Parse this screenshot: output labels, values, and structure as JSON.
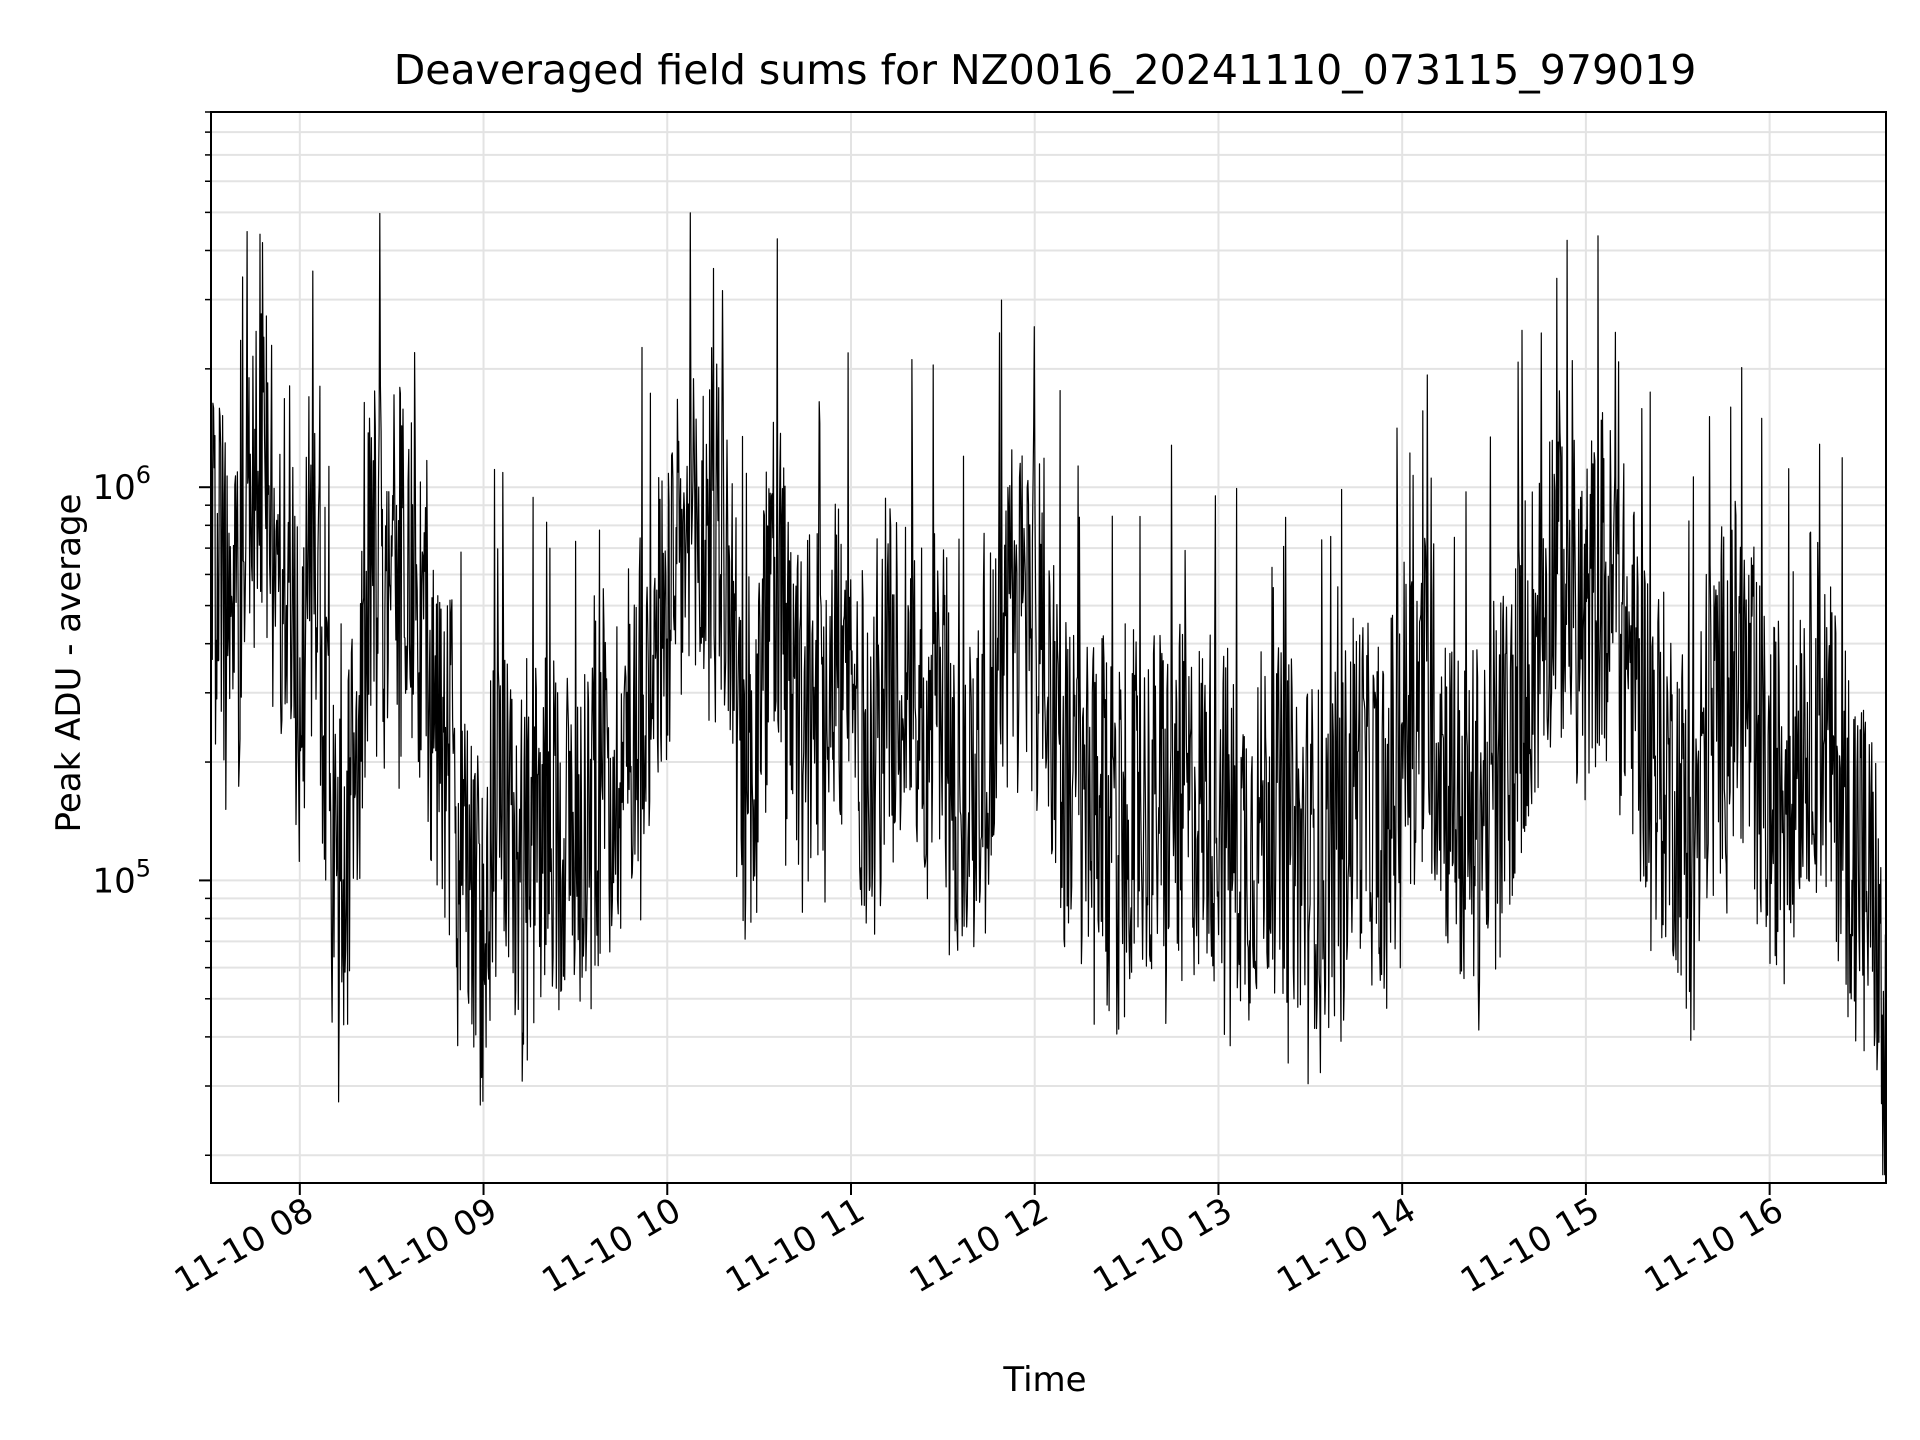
{
  "chart_data": {
    "type": "line",
    "title": "Deaveraged field sums for NZ0016_20241110_073115_979019",
    "xlabel": "Time",
    "ylabel": "Peak ADU - average",
    "yscale": "log",
    "grid": true,
    "legend": "none",
    "xlim": [
      "2024-11-10 07:31",
      "2024-11-10 16:38"
    ],
    "ylim": [
      17000,
      9000000
    ],
    "x_ticks": [
      {
        "value": "2024-11-10 08:00",
        "label": "11-10 08"
      },
      {
        "value": "2024-11-10 09:00",
        "label": "11-10 09"
      },
      {
        "value": "2024-11-10 10:00",
        "label": "11-10 10"
      },
      {
        "value": "2024-11-10 11:00",
        "label": "11-10 11"
      },
      {
        "value": "2024-11-10 12:00",
        "label": "11-10 12"
      },
      {
        "value": "2024-11-10 13:00",
        "label": "11-10 13"
      },
      {
        "value": "2024-11-10 14:00",
        "label": "11-10 14"
      },
      {
        "value": "2024-11-10 15:00",
        "label": "11-10 15"
      },
      {
        "value": "2024-11-10 16:00",
        "label": "11-10 16"
      }
    ],
    "y_ticks": [
      {
        "value": 100000,
        "base": "10",
        "exp": "5"
      },
      {
        "value": 1000000,
        "base": "10",
        "exp": "6"
      }
    ],
    "series": [
      {
        "color": "#000000",
        "x": [
          "2024-11-10 07:31",
          "2024-11-10 07:36",
          "2024-11-10 07:41",
          "2024-11-10 07:46",
          "2024-11-10 07:50",
          "2024-11-10 07:55",
          "2024-11-10 08:00",
          "2024-11-10 08:05",
          "2024-11-10 08:10",
          "2024-11-10 08:15",
          "2024-11-10 08:20",
          "2024-11-10 08:25",
          "2024-11-10 08:30",
          "2024-11-10 08:35",
          "2024-11-10 08:40",
          "2024-11-10 08:45",
          "2024-11-10 08:50",
          "2024-11-10 08:55",
          "2024-11-10 09:00",
          "2024-11-10 09:05",
          "2024-11-10 09:10",
          "2024-11-10 09:15",
          "2024-11-10 09:20",
          "2024-11-10 09:25",
          "2024-11-10 09:30",
          "2024-11-10 09:35",
          "2024-11-10 09:40",
          "2024-11-10 09:45",
          "2024-11-10 09:50",
          "2024-11-10 09:55",
          "2024-11-10 10:00",
          "2024-11-10 10:05",
          "2024-11-10 10:10",
          "2024-11-10 10:15",
          "2024-11-10 10:20",
          "2024-11-10 10:25",
          "2024-11-10 10:30",
          "2024-11-10 10:35",
          "2024-11-10 10:40",
          "2024-11-10 10:45",
          "2024-11-10 10:50",
          "2024-11-10 10:55",
          "2024-11-10 11:00",
          "2024-11-10 11:05",
          "2024-11-10 11:10",
          "2024-11-10 11:15",
          "2024-11-10 11:20",
          "2024-11-10 11:25",
          "2024-11-10 11:30",
          "2024-11-10 11:35",
          "2024-11-10 11:40",
          "2024-11-10 11:45",
          "2024-11-10 11:50",
          "2024-11-10 11:55",
          "2024-11-10 12:00",
          "2024-11-10 12:05",
          "2024-11-10 12:10",
          "2024-11-10 12:15",
          "2024-11-10 12:20",
          "2024-11-10 12:25",
          "2024-11-10 12:30",
          "2024-11-10 12:35",
          "2024-11-10 12:40",
          "2024-11-10 12:45",
          "2024-11-10 12:50",
          "2024-11-10 12:55",
          "2024-11-10 13:00",
          "2024-11-10 13:05",
          "2024-11-10 13:10",
          "2024-11-10 13:15",
          "2024-11-10 13:20",
          "2024-11-10 13:25",
          "2024-11-10 13:30",
          "2024-11-10 13:35",
          "2024-11-10 13:40",
          "2024-11-10 13:45",
          "2024-11-10 13:50",
          "2024-11-10 13:55",
          "2024-11-10 14:00",
          "2024-11-10 14:05",
          "2024-11-10 14:10",
          "2024-11-10 14:15",
          "2024-11-10 14:20",
          "2024-11-10 14:25",
          "2024-11-10 14:30",
          "2024-11-10 14:35",
          "2024-11-10 14:40",
          "2024-11-10 14:45",
          "2024-11-10 14:50",
          "2024-11-10 14:55",
          "2024-11-10 15:00",
          "2024-11-10 15:05",
          "2024-11-10 15:10",
          "2024-11-10 15:15",
          "2024-11-10 15:20",
          "2024-11-10 15:25",
          "2024-11-10 15:30",
          "2024-11-10 15:35",
          "2024-11-10 15:40",
          "2024-11-10 15:45",
          "2024-11-10 15:50",
          "2024-11-10 15:55",
          "2024-11-10 16:00",
          "2024-11-10 16:05",
          "2024-11-10 16:10",
          "2024-11-10 16:15",
          "2024-11-10 16:20",
          "2024-11-10 16:25",
          "2024-11-10 16:30",
          "2024-11-10 16:35",
          "2024-11-10 16:38"
        ],
        "y": [
          600000,
          550000,
          620000,
          1050000,
          950000,
          600000,
          300000,
          700000,
          120000,
          90000,
          400000,
          800000,
          600000,
          700000,
          400000,
          250000,
          180000,
          90000,
          70000,
          300000,
          100000,
          110000,
          150000,
          130000,
          140000,
          160000,
          170000,
          200000,
          300000,
          350000,
          500000,
          650000,
          700000,
          900000,
          600000,
          150000,
          250000,
          700000,
          300000,
          250000,
          320000,
          400000,
          300000,
          200000,
          350000,
          300000,
          400000,
          250000,
          300000,
          150000,
          200000,
          250000,
          450000,
          500000,
          600000,
          350000,
          180000,
          150000,
          140000,
          160000,
          160000,
          150000,
          160000,
          170000,
          150000,
          160000,
          170000,
          130000,
          120000,
          150000,
          140000,
          130000,
          120000,
          110000,
          130000,
          200000,
          150000,
          160000,
          250000,
          300000,
          280000,
          180000,
          130000,
          150000,
          200000,
          220000,
          350000,
          450000,
          700000,
          500000,
          450000,
          600000,
          500000,
          350000,
          250000,
          200000,
          160000,
          140000,
          250000,
          300000,
          350000,
          250000,
          150000,
          200000,
          250000,
          300000,
          200000,
          150000,
          120000,
          80000,
          25000
        ]
      }
    ]
  }
}
